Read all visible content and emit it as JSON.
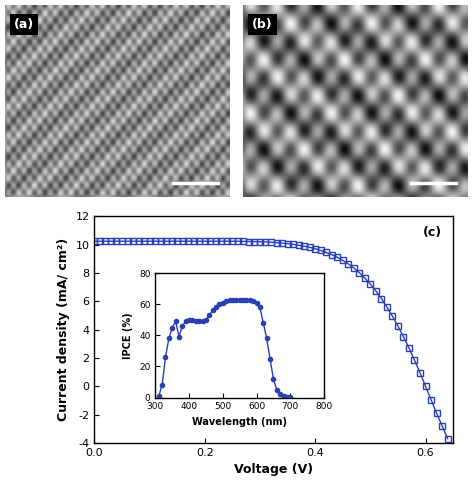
{
  "images": [
    {
      "label": "(a)"
    },
    {
      "label": "(b)"
    }
  ],
  "chart_data": [
    {
      "type": "line",
      "annotation": "(c)",
      "x_label": "Voltage (V)",
      "y_label": "Current density (mA/ cm²)",
      "x": [
        0.0,
        0.01,
        0.02,
        0.03,
        0.04,
        0.05,
        0.06,
        0.07,
        0.08,
        0.09,
        0.1,
        0.11,
        0.12,
        0.13,
        0.14,
        0.15,
        0.16,
        0.17,
        0.18,
        0.19,
        0.2,
        0.21,
        0.22,
        0.23,
        0.24,
        0.25,
        0.26,
        0.27,
        0.28,
        0.29,
        0.3,
        0.31,
        0.32,
        0.33,
        0.34,
        0.35,
        0.36,
        0.37,
        0.38,
        0.39,
        0.4,
        0.41,
        0.42,
        0.43,
        0.44,
        0.45,
        0.46,
        0.47,
        0.48,
        0.49,
        0.5,
        0.51,
        0.52,
        0.53,
        0.54,
        0.55,
        0.56,
        0.57,
        0.58,
        0.59,
        0.6,
        0.61,
        0.62,
        0.63,
        0.64
      ],
      "values": [
        10.25,
        10.25,
        10.25,
        10.25,
        10.25,
        10.25,
        10.25,
        10.25,
        10.25,
        10.25,
        10.25,
        10.25,
        10.25,
        10.25,
        10.25,
        10.25,
        10.25,
        10.25,
        10.25,
        10.25,
        10.25,
        10.25,
        10.25,
        10.25,
        10.25,
        10.25,
        10.25,
        10.24,
        10.23,
        10.22,
        10.21,
        10.2,
        10.18,
        10.15,
        10.12,
        10.08,
        10.03,
        9.97,
        9.9,
        9.82,
        9.72,
        9.6,
        9.46,
        9.3,
        9.12,
        8.9,
        8.65,
        8.36,
        8.03,
        7.65,
        7.22,
        6.74,
        6.2,
        5.6,
        4.95,
        4.25,
        3.5,
        2.7,
        1.85,
        0.95,
        0.0,
        -0.95,
        -1.9,
        -2.8,
        -3.7
      ],
      "xlim": [
        0.0,
        0.65
      ],
      "xticks": [
        0.0,
        0.2,
        0.4,
        0.6
      ],
      "ylim": [
        -4,
        12
      ],
      "yticks": [
        -4,
        -2,
        0,
        2,
        4,
        6,
        8,
        10,
        12
      ],
      "color": "#2b3fb5",
      "marker": "square",
      "line_style": "solid"
    },
    {
      "type": "line",
      "x_label": "Wavelength (nm)",
      "y_label": "IPCE (%)",
      "x": [
        310,
        320,
        330,
        340,
        350,
        360,
        370,
        380,
        390,
        400,
        410,
        420,
        430,
        440,
        450,
        460,
        470,
        480,
        490,
        500,
        510,
        520,
        530,
        540,
        550,
        560,
        570,
        580,
        590,
        600,
        610,
        620,
        630,
        640,
        650,
        660,
        670,
        680,
        690,
        700
      ],
      "values": [
        1,
        8,
        26,
        38,
        45,
        49,
        39,
        46,
        49,
        50,
        50,
        49,
        49,
        49,
        50,
        53,
        56,
        58,
        60,
        61,
        62,
        62.5,
        63,
        63,
        63,
        63,
        63,
        62.5,
        62,
        61,
        58,
        48,
        38,
        25,
        12,
        5,
        2,
        1,
        0.5,
        0.3
      ],
      "xlim": [
        300,
        800
      ],
      "xticks": [
        300,
        400,
        500,
        600,
        700,
        800
      ],
      "ylim": [
        0,
        80
      ],
      "yticks": [
        0,
        20,
        40,
        60,
        80
      ],
      "color": "#2b3fb5",
      "marker": "circle",
      "line_style": "solid"
    }
  ]
}
